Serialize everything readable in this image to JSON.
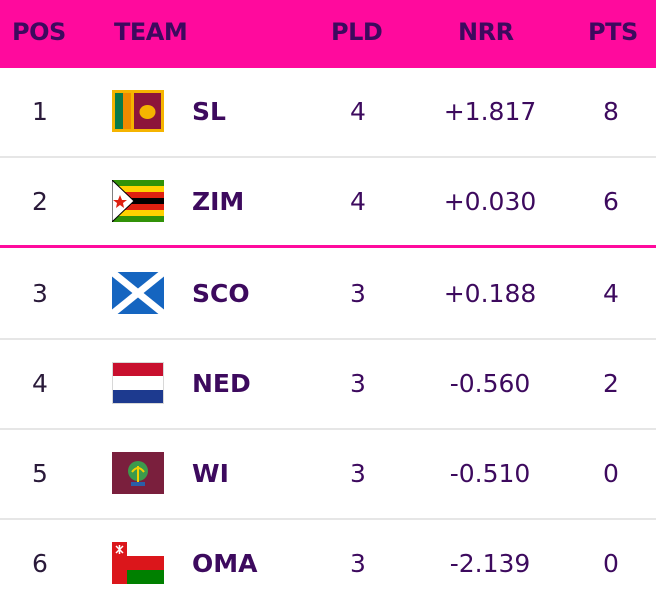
{
  "header": {
    "pos": "POS",
    "team": "TEAM",
    "pld": "PLD",
    "nrr": "NRR",
    "pts": "PTS"
  },
  "rows": [
    {
      "pos": "1",
      "team": "SL",
      "pld": "4",
      "nrr": "+1.817",
      "pts": "8",
      "flag": "sri-lanka-flag-icon"
    },
    {
      "pos": "2",
      "team": "ZIM",
      "pld": "4",
      "nrr": "+0.030",
      "pts": "6",
      "flag": "zimbabwe-flag-icon"
    },
    {
      "pos": "3",
      "team": "SCO",
      "pld": "3",
      "nrr": "+0.188",
      "pts": "4",
      "flag": "scotland-flag-icon"
    },
    {
      "pos": "4",
      "team": "NED",
      "pld": "3",
      "nrr": "-0.560",
      "pts": "2",
      "flag": "netherlands-flag-icon"
    },
    {
      "pos": "5",
      "team": "WI",
      "pld": "3",
      "nrr": "-0.510",
      "pts": "0",
      "flag": "west-indies-flag-icon"
    },
    {
      "pos": "6",
      "team": "OMA",
      "pld": "3",
      "nrr": "-2.139",
      "pts": "0",
      "flag": "oman-flag-icon"
    }
  ],
  "colors": {
    "header_bg": "#ff0a9d",
    "text": "#3d0a5e",
    "qualification_line": "#ff0a9d"
  }
}
